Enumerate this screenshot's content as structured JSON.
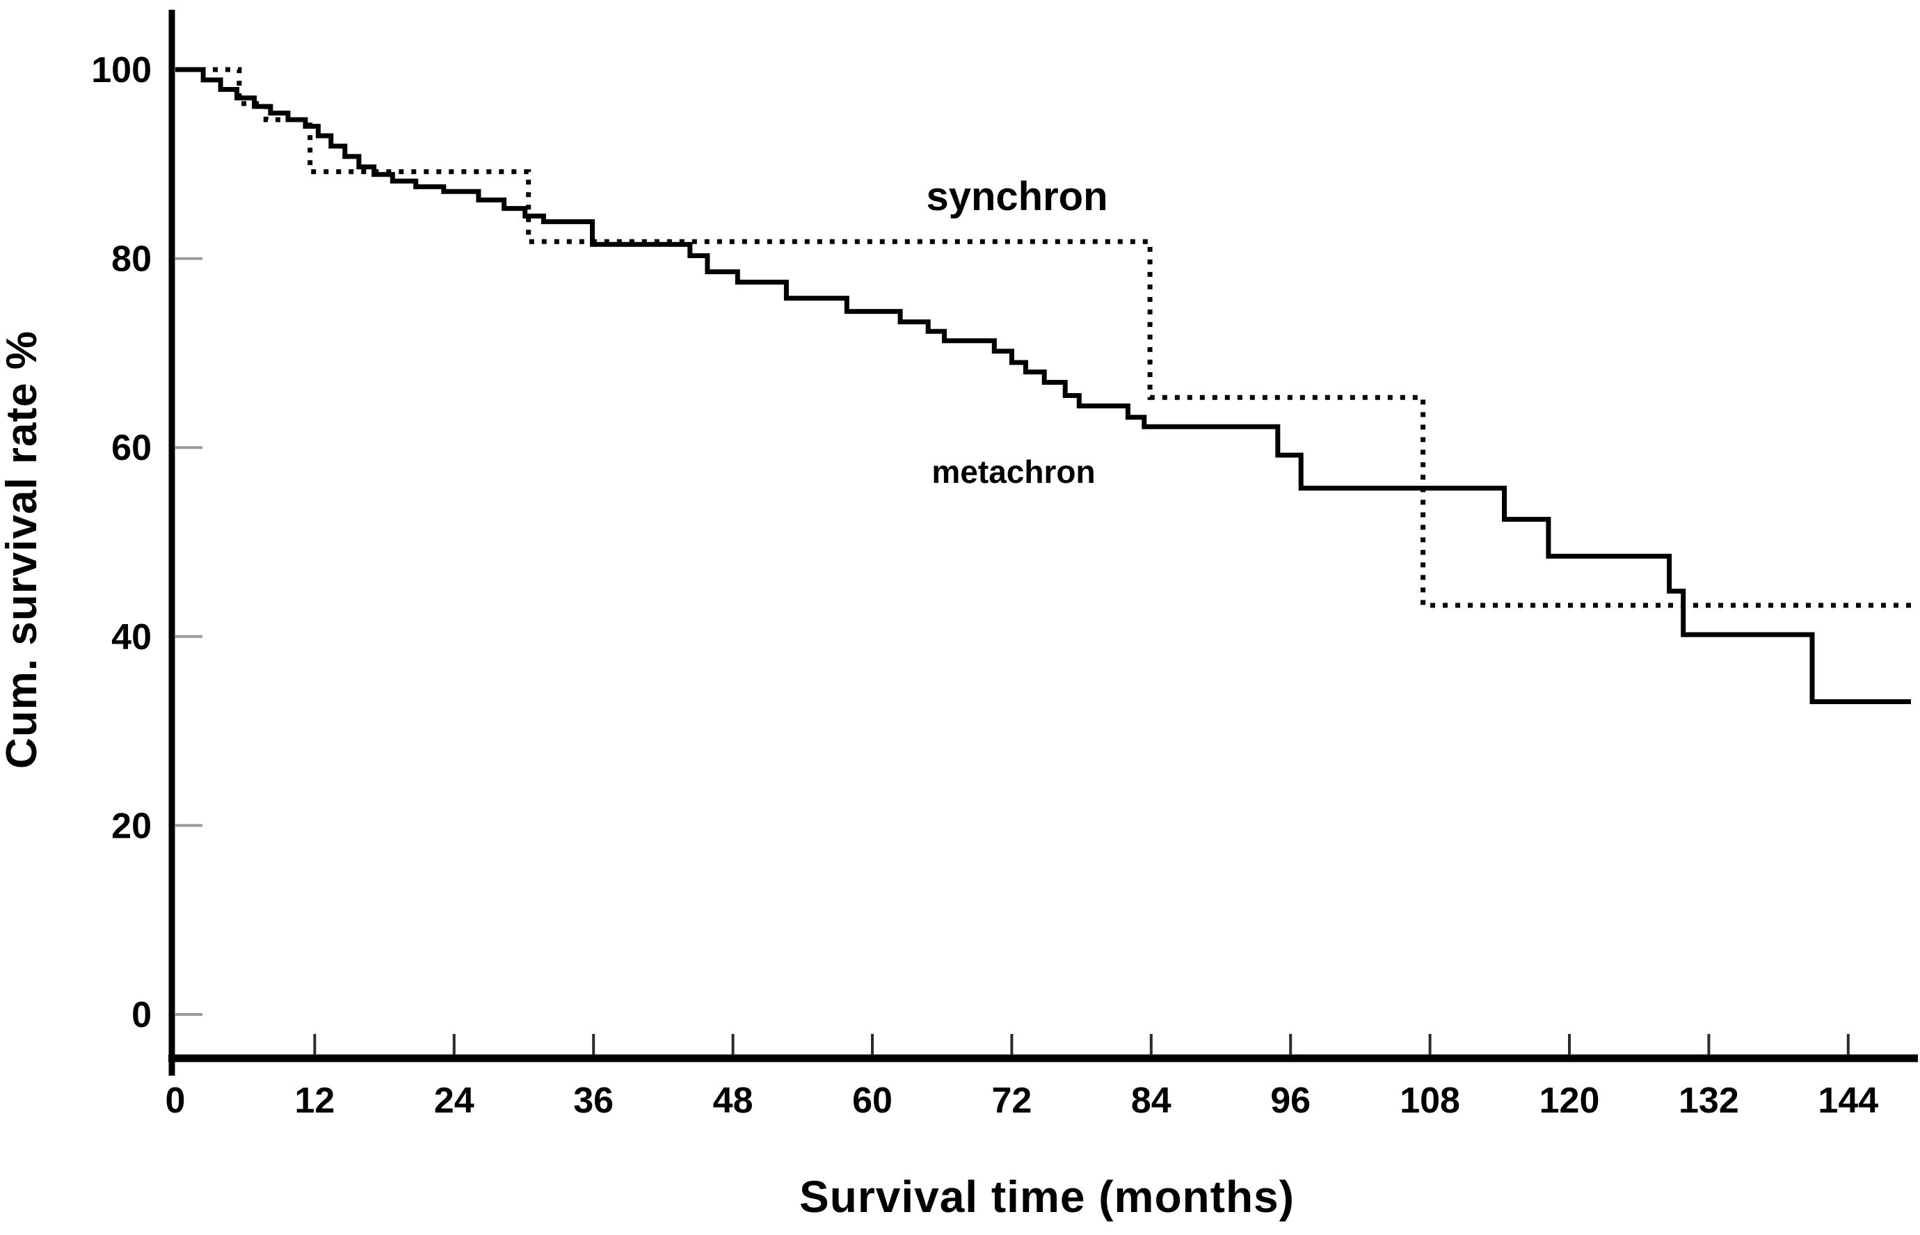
{
  "figure": {
    "background_color": "#ffffff",
    "ink_color": "#000000",
    "muted_tick_color": "#9a9a9a"
  },
  "chart_data": {
    "type": "line",
    "subtype": "kaplan-meier-step-survival",
    "title": "",
    "xlabel": "Survival time (months)",
    "ylabel": "Cum. survival rate %",
    "xlim": [
      0,
      150
    ],
    "ylim": [
      0,
      100
    ],
    "x_ticks": [
      0,
      12,
      24,
      36,
      48,
      60,
      72,
      84,
      96,
      108,
      120,
      132,
      144
    ],
    "y_ticks": [
      0,
      20,
      40,
      60,
      80,
      100
    ],
    "grid": false,
    "legend_position": "inline-annotations",
    "series": [
      {
        "name": "synchron",
        "style": "dotted",
        "color": "#000000",
        "end_month": 149.4,
        "steps": [
          [
            0,
            100
          ],
          [
            5.5,
            96.4
          ],
          [
            7.8,
            94.7
          ],
          [
            11.6,
            89.2
          ],
          [
            30.4,
            81.8
          ],
          [
            83.9,
            65.3
          ],
          [
            107.4,
            43.3
          ]
        ]
      },
      {
        "name": "metachron",
        "style": "solid",
        "color": "#000000",
        "end_month": 149.4,
        "steps": [
          [
            0,
            100
          ],
          [
            2.4,
            98.9
          ],
          [
            3.9,
            97.9
          ],
          [
            5.3,
            97.0
          ],
          [
            6.8,
            96.1
          ],
          [
            8.2,
            95.4
          ],
          [
            9.7,
            94.7
          ],
          [
            11.2,
            94.0
          ],
          [
            12.3,
            93.0
          ],
          [
            13.4,
            91.9
          ],
          [
            14.6,
            90.8
          ],
          [
            15.8,
            89.7
          ],
          [
            17.1,
            88.9
          ],
          [
            18.7,
            88.2
          ],
          [
            20.7,
            87.6
          ],
          [
            23.1,
            87.1
          ],
          [
            26.1,
            86.2
          ],
          [
            28.3,
            85.3
          ],
          [
            30.1,
            84.5
          ],
          [
            31.7,
            83.9
          ],
          [
            35.9,
            81.5
          ],
          [
            44.3,
            80.3
          ],
          [
            45.8,
            78.6
          ],
          [
            48.4,
            77.5
          ],
          [
            52.6,
            75.8
          ],
          [
            57.8,
            74.4
          ],
          [
            62.4,
            73.3
          ],
          [
            64.8,
            72.3
          ],
          [
            66.2,
            71.3
          ],
          [
            70.5,
            70.2
          ],
          [
            72.0,
            69.0
          ],
          [
            73.2,
            68.0
          ],
          [
            74.8,
            66.9
          ],
          [
            76.6,
            65.5
          ],
          [
            77.8,
            64.4
          ],
          [
            82.0,
            63.2
          ],
          [
            83.4,
            62.2
          ],
          [
            94.9,
            59.2
          ],
          [
            96.9,
            55.7
          ],
          [
            114.4,
            52.4
          ],
          [
            118.2,
            48.5
          ],
          [
            128.6,
            44.8
          ],
          [
            129.8,
            40.2
          ],
          [
            140.9,
            33.1
          ]
        ]
      }
    ],
    "annotations": [
      {
        "text": "synchron",
        "month": 72.5,
        "value": 86.7
      },
      {
        "text": "metachron",
        "month": 72.2,
        "value": 57.4
      }
    ]
  }
}
